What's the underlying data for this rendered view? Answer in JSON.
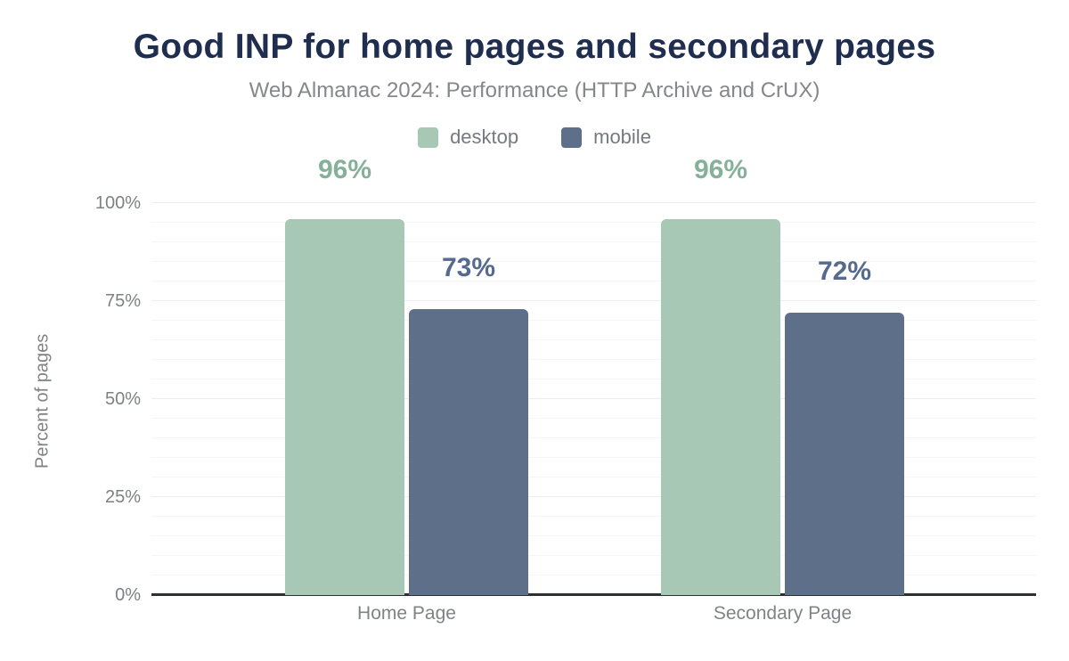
{
  "header": {
    "title": "Good INP for home pages and secondary pages",
    "subtitle": "Web Almanac 2024: Performance (HTTP Archive and CrUX)"
  },
  "chart_data": {
    "type": "bar",
    "title": "Good INP for home pages and secondary pages",
    "subtitle": "Web Almanac 2024: Performance (HTTP Archive and CrUX)",
    "categories": [
      "Home Page",
      "Secondary Page"
    ],
    "series": [
      {
        "name": "desktop",
        "values": [
          96,
          96
        ],
        "data_labels": [
          "96%",
          "96%"
        ],
        "bar_color": "#a6c8b5",
        "label_color": "#86b199"
      },
      {
        "name": "mobile",
        "values": [
          73,
          72
        ],
        "data_labels": [
          "73%",
          "72%"
        ],
        "bar_color": "#5e7089",
        "label_color": "#566a90"
      }
    ],
    "xlabel": "",
    "ylabel": "Percent of pages",
    "ylim": [
      0,
      100
    ],
    "yticks": [
      {
        "value": 0,
        "label": "0%"
      },
      {
        "value": 25,
        "label": "25%"
      },
      {
        "value": 50,
        "label": "50%"
      },
      {
        "value": 75,
        "label": "75%"
      },
      {
        "value": 100,
        "label": "100%"
      }
    ],
    "grid": {
      "on": true,
      "minor_step": 5,
      "major_step": 25
    },
    "legend_position": "top"
  },
  "colors": {
    "title_text": "#1f2d4f",
    "subtitle_text": "#85878a",
    "axis_text": "#7e8184",
    "axis_line": "#2e2f31",
    "gridline_minor": "#f6f6f8",
    "gridline_major": "#ededf0",
    "background": "#ffffff"
  }
}
